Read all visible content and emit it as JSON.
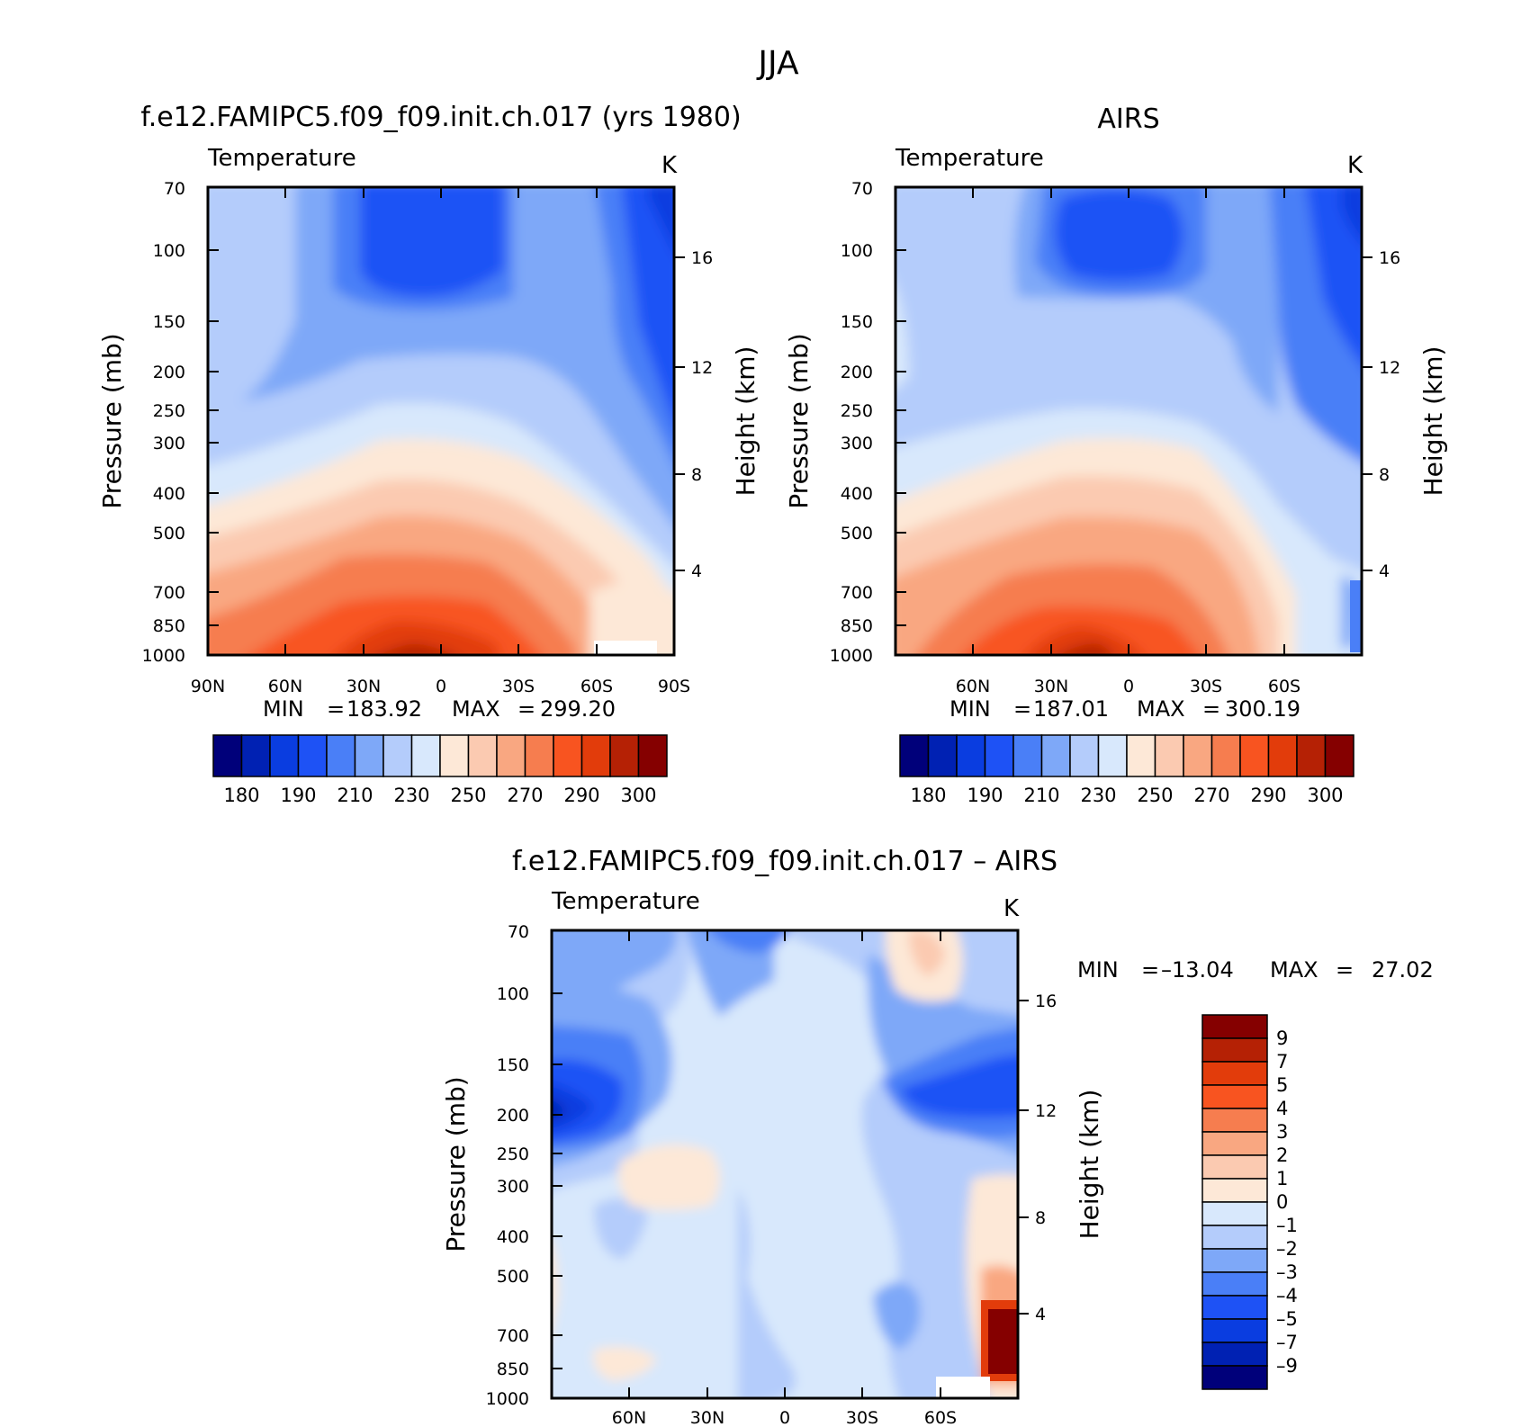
{
  "figure": {
    "title": "JJA"
  },
  "chart_data": [
    {
      "type": "heatmap",
      "case_title": "f.e12.FAMIPC5.f09_f09.init.ch.017 (yrs 1980)",
      "variable": "Temperature",
      "units": "K",
      "ylabel": "Pressure (mb)",
      "ylabel_right": "Height (km)",
      "x_ticks": [
        "90N",
        "60N",
        "30N",
        "0",
        "30S",
        "60S",
        "90S"
      ],
      "y_ticks": [
        "70",
        "100",
        "150",
        "200",
        "250",
        "300",
        "400",
        "500",
        "700",
        "850",
        "1000"
      ],
      "height_ticks": [
        "16",
        "12",
        "8",
        "4"
      ],
      "min_label": "MIN",
      "min": "183.92",
      "max_label": "MAX",
      "max": "299.20",
      "colorbar_labels": [
        "180",
        "190",
        "210",
        "230",
        "250",
        "270",
        "290",
        "300"
      ],
      "colorbar_colors": [
        "#00007a",
        "#0021b3",
        "#0a3de0",
        "#1e52f5",
        "#4a7ff7",
        "#7ea8f8",
        "#b4ccfb",
        "#d8e8fc",
        "#fde8d7",
        "#fbcab1",
        "#f9a781",
        "#f67d4f",
        "#f85420",
        "#e23c0b",
        "#b52105",
        "#850000"
      ]
    },
    {
      "type": "heatmap",
      "case_title": "AIRS",
      "variable": "Temperature",
      "units": "K",
      "ylabel": "Pressure (mb)",
      "ylabel_right": "Height (km)",
      "x_ticks": [
        "60N",
        "30N",
        "0",
        "30S",
        "60S"
      ],
      "y_ticks": [
        "70",
        "100",
        "150",
        "200",
        "250",
        "300",
        "400",
        "500",
        "700",
        "850",
        "1000"
      ],
      "height_ticks": [
        "16",
        "12",
        "8",
        "4"
      ],
      "min_label": "MIN",
      "min": "187.01",
      "max_label": "MAX",
      "max": "300.19",
      "colorbar_labels": [
        "180",
        "190",
        "210",
        "230",
        "250",
        "270",
        "290",
        "300"
      ],
      "colorbar_colors": [
        "#00007a",
        "#0021b3",
        "#0a3de0",
        "#1e52f5",
        "#4a7ff7",
        "#7ea8f8",
        "#b4ccfb",
        "#d8e8fc",
        "#fde8d7",
        "#fbcab1",
        "#f9a781",
        "#f67d4f",
        "#f85420",
        "#e23c0b",
        "#b52105",
        "#850000"
      ]
    },
    {
      "type": "heatmap",
      "case_title": "f.e12.FAMIPC5.f09_f09.init.ch.017 – AIRS",
      "variable": "Temperature",
      "units": "K",
      "ylabel": "Pressure (mb)",
      "ylabel_right": "Height (km)",
      "x_ticks": [
        "60N",
        "30N",
        "0",
        "30S",
        "60S"
      ],
      "y_ticks": [
        "70",
        "100",
        "150",
        "200",
        "250",
        "300",
        "400",
        "500",
        "700",
        "850",
        "1000"
      ],
      "height_ticks": [
        "16",
        "12",
        "8",
        "4"
      ],
      "min_label": "MIN",
      "min": "–13.04",
      "max_label": "MAX",
      "max": "27.02",
      "colorbar_labels": [
        "9",
        "7",
        "5",
        "4",
        "3",
        "2",
        "1",
        "0",
        "–1",
        "–2",
        "–3",
        "–4",
        "–5",
        "–7",
        "–9"
      ],
      "colorbar_colors": [
        "#850000",
        "#b52105",
        "#e23c0b",
        "#f85420",
        "#f67d4f",
        "#f9a781",
        "#fbcab1",
        "#fde8d7",
        "#d8e8fc",
        "#b4ccfb",
        "#7ea8f8",
        "#4a7ff7",
        "#1e52f5",
        "#0a3de0",
        "#0021b3",
        "#00007a"
      ]
    }
  ]
}
